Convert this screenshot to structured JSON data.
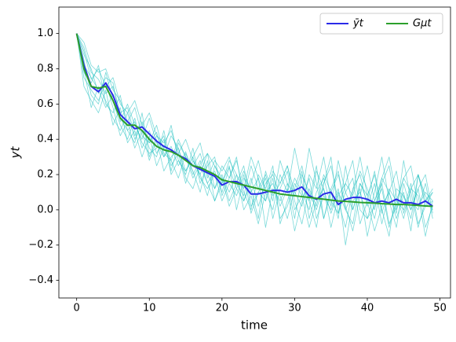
{
  "chart_data": {
    "type": "line",
    "xlabel": "time",
    "ylabel": "yt",
    "x": [
      0,
      1,
      2,
      3,
      4,
      5,
      6,
      7,
      8,
      9,
      10,
      11,
      12,
      13,
      14,
      15,
      16,
      17,
      18,
      19,
      20,
      21,
      22,
      23,
      24,
      25,
      26,
      27,
      28,
      29,
      30,
      31,
      32,
      33,
      34,
      35,
      36,
      37,
      38,
      39,
      40,
      41,
      42,
      43,
      44,
      45,
      46,
      47,
      48,
      49
    ],
    "xlim": [
      -2.45,
      51.45
    ],
    "xticks": [
      0,
      10,
      20,
      30,
      40,
      50
    ],
    "ylim": [
      -0.5,
      1.15
    ],
    "yticks": [
      {
        "value": -0.4,
        "label": "−0.4"
      },
      {
        "value": -0.2,
        "label": "−0.2"
      },
      {
        "value": 0,
        "label": "0.0"
      },
      {
        "value": 0.2,
        "label": "0.2"
      },
      {
        "value": 0.4,
        "label": "0.4"
      },
      {
        "value": 0.6,
        "label": "0.6"
      },
      {
        "value": 0.8,
        "label": "0.8"
      },
      {
        "value": 1.0,
        "label": "1.0"
      }
    ],
    "legend": "upper right",
    "series": [
      {
        "color": "#1fbfbf",
        "values": [
          1,
          0.92,
          0.78,
          0.74,
          0.66,
          0.7,
          0.55,
          0.58,
          0.42,
          0.5,
          0.38,
          0.44,
          0.3,
          0.36,
          0.25,
          0.33,
          0.2,
          0.28,
          0.15,
          0.22,
          0.1,
          0.24,
          0.12,
          0.05,
          0.18,
          0.02,
          0.15,
          0.2,
          0.08,
          -0.05,
          0.12,
          0.25,
          0.05,
          -0.1,
          0.15,
          0.3,
          -0.02,
          0.1,
          0.18,
          -0.08,
          0.05,
          0.22,
          0.0,
          -0.15,
          0.12,
          0.08,
          -0.05,
          0.2,
          0.02,
          0.1
        ]
      },
      {
        "color": "#1fbfbf",
        "values": [
          1,
          0.85,
          0.65,
          0.6,
          0.78,
          0.62,
          0.48,
          0.4,
          0.52,
          0.35,
          0.45,
          0.32,
          0.4,
          0.22,
          0.38,
          0.3,
          0.18,
          0.26,
          0.32,
          0.12,
          0.2,
          0.05,
          0.15,
          0.25,
          0.02,
          0.1,
          0.18,
          -0.05,
          0.12,
          0.22,
          0.0,
          0.08,
          0.35,
          0.15,
          -0.05,
          0.1,
          0.2,
          0.02,
          -0.12,
          0.08,
          0.25,
          0.05,
          0.15,
          -0.08,
          0.02,
          0.18,
          0.1,
          -0.1,
          0.05,
          0.12
        ]
      },
      {
        "color": "#1fbfbf",
        "values": [
          1,
          0.78,
          0.72,
          0.82,
          0.6,
          0.55,
          0.65,
          0.45,
          0.38,
          0.55,
          0.3,
          0.42,
          0.35,
          0.48,
          0.28,
          0.2,
          0.35,
          0.15,
          0.25,
          0.3,
          0.08,
          0.18,
          0.28,
          0.1,
          0.0,
          0.2,
          0.12,
          0.25,
          -0.08,
          0.05,
          0.18,
          0.1,
          0.0,
          0.22,
          0.12,
          -0.1,
          0.08,
          0.15,
          0.28,
          0.0,
          -0.05,
          0.1,
          0.3,
          0.05,
          -0.1,
          0.15,
          0.0,
          0.12,
          0.2,
          -0.02
        ]
      },
      {
        "color": "#1fbfbf",
        "values": [
          1,
          0.7,
          0.62,
          0.55,
          0.68,
          0.48,
          0.58,
          0.38,
          0.45,
          0.3,
          0.42,
          0.25,
          0.35,
          0.28,
          0.18,
          0.32,
          0.22,
          0.1,
          0.28,
          0.05,
          0.15,
          0.25,
          0.0,
          0.18,
          0.12,
          -0.05,
          0.22,
          0.08,
          0.15,
          0.25,
          0.05,
          -0.08,
          0.12,
          0.02,
          0.2,
          0.1,
          -0.05,
          0.25,
          0.0,
          0.12,
          -0.15,
          0.05,
          0.18,
          0.1,
          -0.02,
          0.28,
          0.05,
          0.0,
          0.15,
          -0.05
        ]
      },
      {
        "color": "#1fbfbf",
        "values": [
          1,
          0.88,
          0.8,
          0.66,
          0.75,
          0.72,
          0.5,
          0.6,
          0.48,
          0.4,
          0.52,
          0.38,
          0.3,
          0.42,
          0.35,
          0.22,
          0.3,
          0.38,
          0.2,
          0.12,
          0.25,
          0.18,
          0.3,
          0.05,
          0.15,
          0.28,
          0.1,
          0.0,
          0.2,
          0.1,
          0.35,
          0.15,
          0.05,
          0.25,
          -0.05,
          0.12,
          0.22,
          0.0,
          0.1,
          0.3,
          0.08,
          -0.05,
          0.15,
          0.25,
          0.0,
          0.1,
          -0.12,
          0.2,
          0.08,
          0.0
        ]
      },
      {
        "color": "#1fbfbf",
        "values": [
          1,
          0.8,
          0.58,
          0.7,
          0.62,
          0.52,
          0.45,
          0.55,
          0.4,
          0.48,
          0.35,
          0.3,
          0.45,
          0.25,
          0.32,
          0.15,
          0.28,
          0.2,
          0.08,
          0.25,
          0.18,
          0.02,
          0.12,
          0.22,
          0.1,
          0.18,
          -0.1,
          0.12,
          0.05,
          0.15,
          -0.05,
          0.2,
          0.1,
          0.0,
          0.15,
          0.25,
          0.05,
          -0.1,
          0.12,
          0.2,
          0.02,
          0.15,
          -0.08,
          0.1,
          0.22,
          -0.02,
          0.12,
          0.08,
          -0.15,
          0.05
        ]
      },
      {
        "color": "#1fbfbf",
        "values": [
          1,
          0.95,
          0.82,
          0.78,
          0.8,
          0.68,
          0.62,
          0.5,
          0.58,
          0.42,
          0.38,
          0.48,
          0.32,
          0.28,
          0.4,
          0.3,
          0.25,
          0.32,
          0.18,
          0.28,
          0.22,
          0.3,
          0.15,
          0.08,
          0.25,
          0.12,
          0.2,
          0.05,
          0.28,
          0.15,
          0.08,
          0.22,
          -0.05,
          0.1,
          0.18,
          0.02,
          0.28,
          0.1,
          0.0,
          0.15,
          0.08,
          0.2,
          -0.02,
          0.12,
          0.05,
          0.18,
          0.25,
          0.02,
          0.1,
          0.05
        ]
      },
      {
        "color": "#1fbfbf",
        "values": [
          1,
          0.75,
          0.68,
          0.62,
          0.72,
          0.58,
          0.42,
          0.5,
          0.35,
          0.45,
          0.28,
          0.4,
          0.22,
          0.3,
          0.35,
          0.18,
          0.12,
          0.25,
          0.15,
          0.05,
          0.18,
          0.1,
          0.2,
          0.0,
          0.08,
          -0.08,
          0.1,
          0.15,
          0.02,
          0.12,
          -0.12,
          0.05,
          0.18,
          -0.05,
          0.08,
          0.0,
          0.12,
          -0.2,
          0.05,
          0.1,
          -0.05,
          0.02,
          0.12,
          -0.1,
          0.05,
          0.0,
          0.15,
          -0.08,
          0.02,
          0.05
        ]
      },
      {
        "color": "#1fbfbf",
        "values": [
          1,
          0.9,
          0.74,
          0.8,
          0.7,
          0.75,
          0.6,
          0.55,
          0.62,
          0.48,
          0.55,
          0.42,
          0.38,
          0.45,
          0.32,
          0.4,
          0.28,
          0.2,
          0.32,
          0.25,
          0.15,
          0.28,
          0.2,
          0.12,
          0.3,
          0.18,
          0.05,
          0.22,
          0.15,
          0.25,
          0.1,
          0.02,
          0.2,
          0.12,
          0.3,
          0.05,
          -0.02,
          0.15,
          0.08,
          0.22,
          0.12,
          0.0,
          0.18,
          0.3,
          0.08,
          -0.05,
          0.12,
          0.2,
          0.05,
          0.1
        ]
      },
      {
        "color": "#1fbfbf",
        "values": [
          1,
          0.82,
          0.75,
          0.68,
          0.58,
          0.65,
          0.52,
          0.45,
          0.5,
          0.38,
          0.32,
          0.35,
          0.42,
          0.2,
          0.28,
          0.22,
          0.3,
          0.18,
          0.12,
          0.2,
          0.05,
          0.15,
          0.08,
          0.2,
          -0.02,
          0.1,
          0.05,
          0.18,
          -0.05,
          0.02,
          0.15,
          0.08,
          -0.1,
          0.05,
          0.12,
          -0.02,
          0.1,
          0.0,
          -0.08,
          0.15,
          0.05,
          -0.12,
          0.02,
          0.1,
          -0.05,
          0.08,
          0.0,
          0.12,
          -0.1,
          0.02
        ]
      },
      {
        "name": "ȳt",
        "color": "#2a2ae8",
        "values": [
          1,
          0.82,
          0.7,
          0.67,
          0.72,
          0.65,
          0.54,
          0.5,
          0.46,
          0.47,
          0.43,
          0.39,
          0.36,
          0.34,
          0.31,
          0.29,
          0.25,
          0.23,
          0.21,
          0.19,
          0.14,
          0.16,
          0.16,
          0.14,
          0.09,
          0.09,
          0.1,
          0.11,
          0.11,
          0.1,
          0.11,
          0.13,
          0.08,
          0.06,
          0.09,
          0.1,
          0.03,
          0.06,
          0.07,
          0.07,
          0.06,
          0.04,
          0.05,
          0.04,
          0.06,
          0.04,
          0.04,
          0.03,
          0.05,
          0.02
        ]
      },
      {
        "name": "Gμt",
        "color": "#2ca02c",
        "values": [
          1,
          0.8,
          0.7,
          0.69,
          0.7,
          0.62,
          0.52,
          0.48,
          0.48,
          0.45,
          0.4,
          0.36,
          0.34,
          0.33,
          0.31,
          0.28,
          0.25,
          0.24,
          0.22,
          0.2,
          0.17,
          0.16,
          0.15,
          0.14,
          0.13,
          0.12,
          0.11,
          0.1,
          0.09,
          0.085,
          0.08,
          0.075,
          0.07,
          0.065,
          0.06,
          0.055,
          0.05,
          0.048,
          0.045,
          0.042,
          0.04,
          0.038,
          0.035,
          0.033,
          0.03,
          0.03,
          0.028,
          0.025,
          0.022,
          0.02
        ]
      }
    ]
  }
}
